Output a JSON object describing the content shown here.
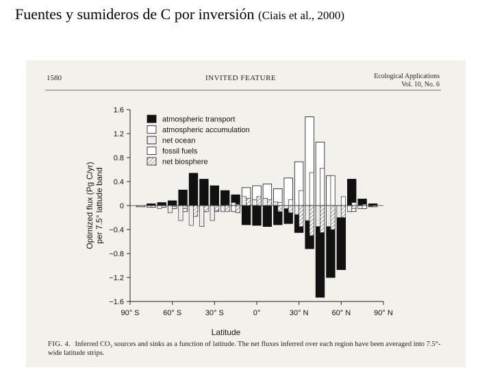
{
  "slide": {
    "title": "Fuentes y sumideros de C por inversión",
    "citation": "(Ciais et al., 2000)"
  },
  "page_header": {
    "page_number": "1580",
    "feature": "INVITED FEATURE",
    "journal": "Ecological Applications",
    "volume": "Vol. 10, No. 6"
  },
  "caption": {
    "label": "FIG. 4.",
    "text": "Inferred CO₂ sources and sinks as a function of latitude. The net fluxes inferred over each region have been averaged into 7.5°-wide latitude strips."
  },
  "colors": {
    "transport": "#111111",
    "accumulation": "#ffffff",
    "ocean": "#e6e6e6",
    "fossil": "#ffffff",
    "biosphere": "#bbbbbb"
  },
  "chart_data": {
    "type": "bar",
    "stacked": true,
    "xlabel": "Latitude",
    "ylabel": "Optimized flux (Pg C/yr) per 7.5° latitude band",
    "ylabel_lines": [
      "Optimized flux (Pg C/yr)",
      "per 7.5° lattude band"
    ],
    "ylim": [
      -1.6,
      1.6
    ],
    "yticks": [
      "1.6",
      "1.2",
      "0.8",
      "0.4",
      "0",
      "−0.4",
      "−0.8",
      "−1.2",
      "−1.6"
    ],
    "ytick_values": [
      1.6,
      1.2,
      0.8,
      0.4,
      0,
      -0.4,
      -0.8,
      -1.2,
      -1.6
    ],
    "xlim": [
      -90,
      90
    ],
    "xticks": [
      "90° S",
      "60° S",
      "30° S",
      "0°",
      "30° N",
      "60° N",
      "90° N"
    ],
    "xtick_values": [
      -90,
      -60,
      -30,
      0,
      30,
      60,
      90
    ],
    "legend": [
      "atmospheric transport",
      "atmospheric accumulation",
      "net ocean",
      "fossil fuels",
      "net biosphere"
    ],
    "legend_position": "top-left",
    "band_centers": [
      -82.5,
      -75,
      -67.5,
      -60,
      -52.5,
      -45,
      -37.5,
      -30,
      -22.5,
      -15,
      -7.5,
      0,
      7.5,
      15,
      22.5,
      30,
      37.5,
      45,
      52.5,
      60,
      67.5,
      75,
      82.5
    ],
    "transport": [
      0.0,
      0.03,
      0.05,
      0.08,
      0.26,
      0.54,
      0.44,
      0.33,
      0.25,
      0.18,
      -0.32,
      -0.33,
      -0.35,
      -0.32,
      -0.3,
      -0.45,
      -0.72,
      -1.53,
      -1.2,
      -1.07,
      0.44,
      0.11,
      0.03
    ],
    "accumulation": [
      -0.02,
      -0.03,
      -0.03,
      -0.05,
      -0.1,
      -0.1,
      -0.1,
      -0.1,
      -0.08,
      -0.1,
      0.3,
      0.33,
      0.36,
      0.28,
      0.46,
      0.73,
      1.48,
      1.06,
      0.5,
      -0.1,
      -0.1,
      -0.05,
      -0.02
    ],
    "net_ocean": [
      0.0,
      -0.03,
      -0.05,
      -0.12,
      -0.25,
      -0.33,
      -0.35,
      -0.25,
      -0.1,
      0.05,
      0.15,
      0.1,
      0.12,
      0.06,
      -0.05,
      -0.15,
      -0.25,
      -0.35,
      -0.35,
      -0.2,
      -0.1,
      -0.05,
      -0.01
    ],
    "fossil": [
      0.0,
      0.0,
      0.0,
      0.0,
      0.0,
      0.0,
      0.0,
      0.0,
      0.01,
      0.02,
      0.02,
      0.02,
      0.03,
      0.05,
      0.1,
      0.25,
      0.55,
      0.62,
      0.5,
      0.15,
      0.05,
      0.02,
      0.0
    ],
    "net_biosphere": [
      0.0,
      0.0,
      0.0,
      -0.02,
      -0.05,
      -0.18,
      -0.1,
      -0.08,
      -0.1,
      -0.12,
      0.12,
      0.15,
      0.1,
      -0.1,
      -0.12,
      -0.35,
      -0.5,
      -0.45,
      -0.4,
      -0.2,
      -0.05,
      0.0,
      0.0
    ]
  }
}
